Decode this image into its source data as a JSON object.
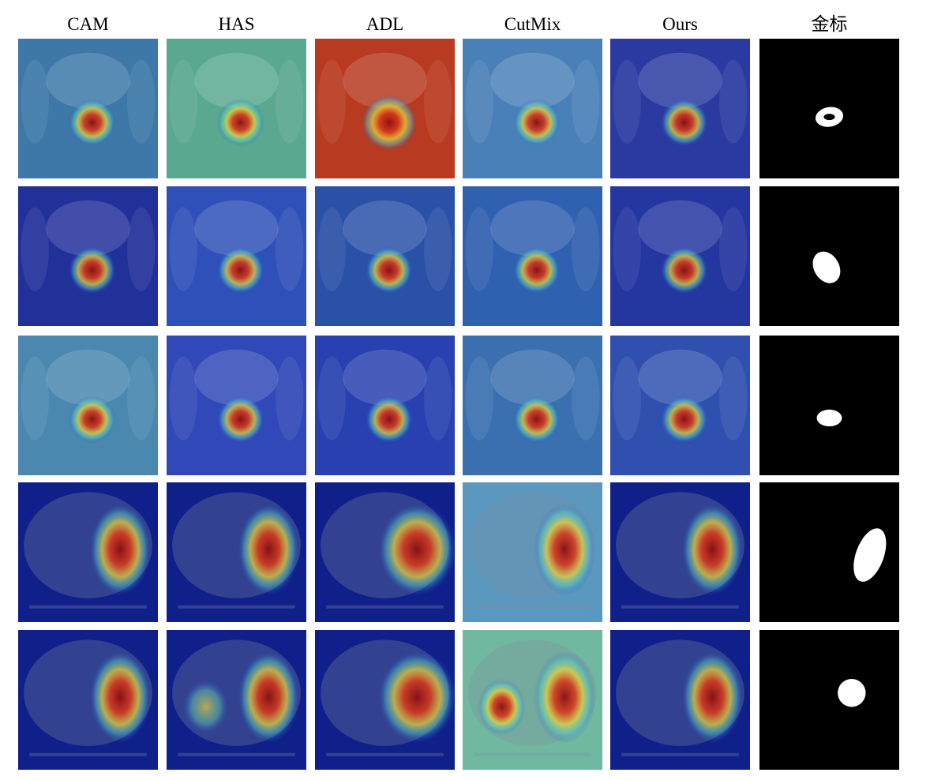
{
  "figure": {
    "columns": [
      "CAM",
      "HAS",
      "ADL",
      "CutMix",
      "Ours",
      "金标"
    ]
  }
}
